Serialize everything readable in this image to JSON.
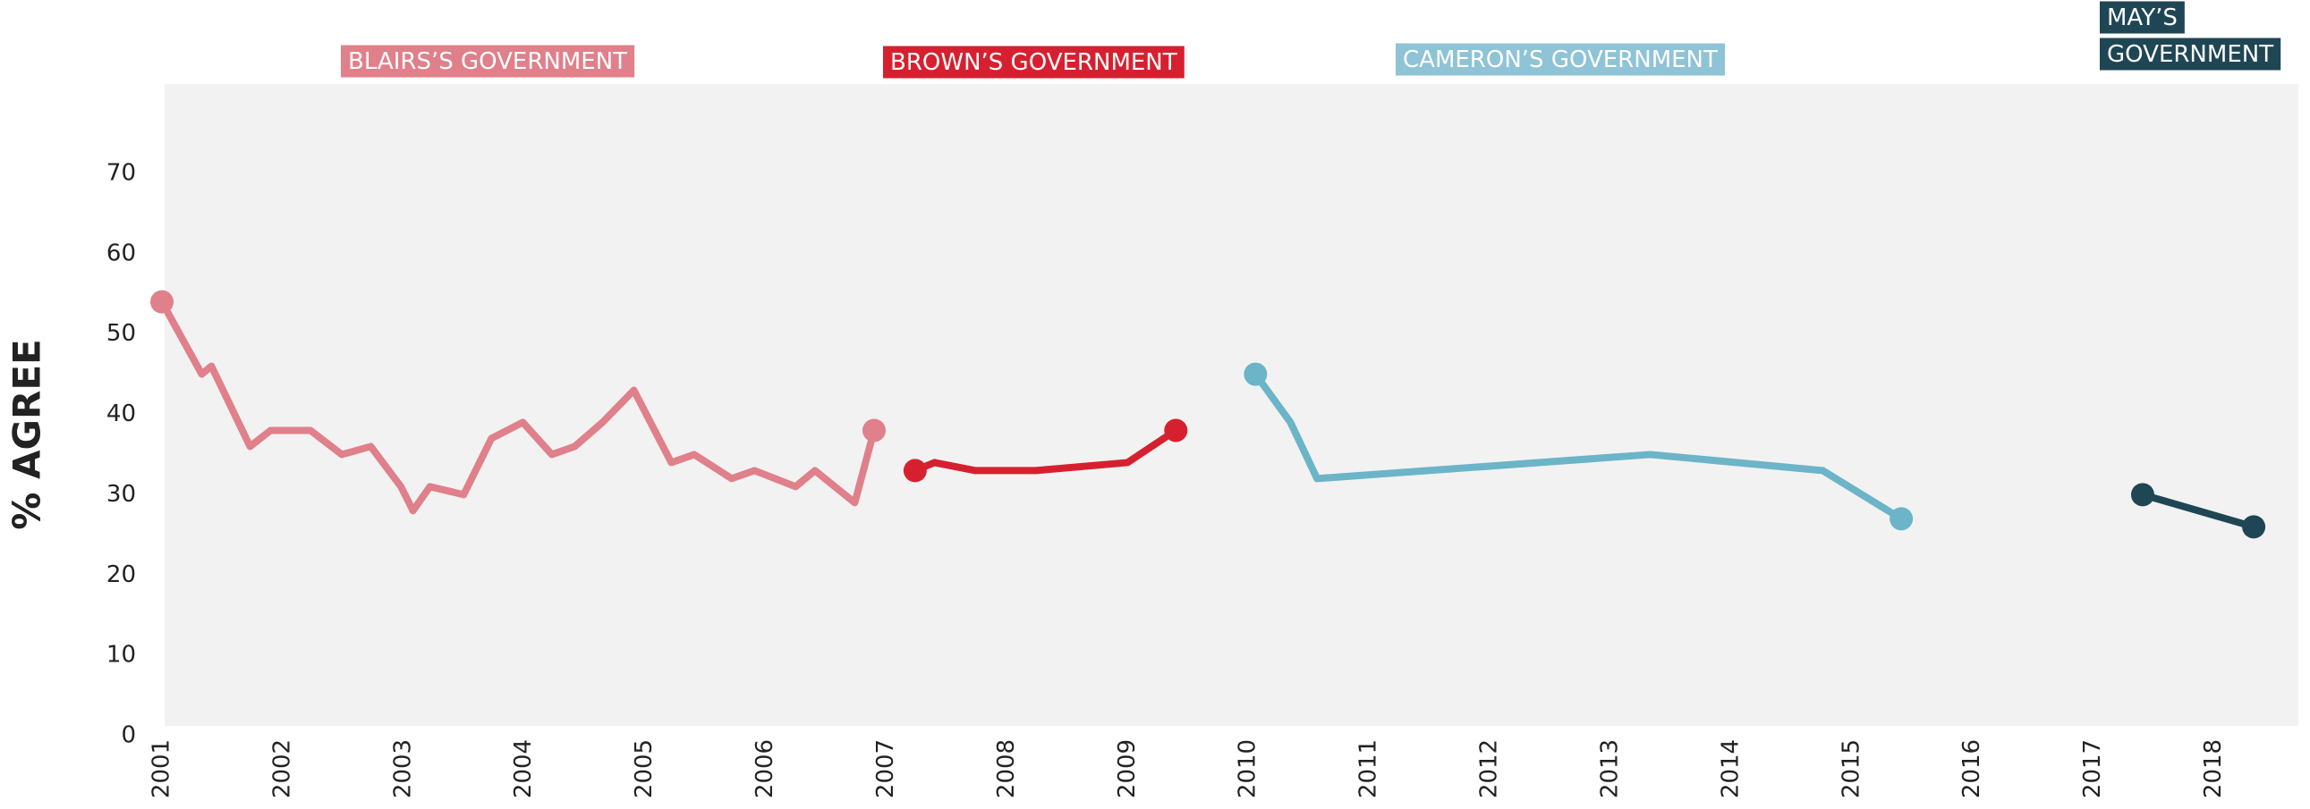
{
  "chart_data": {
    "type": "line",
    "y_label": "% AGREE",
    "xlim": [
      2001,
      2018.7
    ],
    "xticks": [
      2001,
      2002,
      2003,
      2004,
      2005,
      2006,
      2007,
      2008,
      2009,
      2010,
      2011,
      2012,
      2013,
      2014,
      2015,
      2016,
      2017,
      2018
    ],
    "ylim": [
      0,
      80
    ],
    "yticks": [
      0,
      10,
      20,
      30,
      40,
      50,
      60,
      70
    ],
    "series": [
      {
        "name": "BLAIRS’S GOVERNMENT",
        "color": "#e0808a",
        "x": [
          2001.0,
          2001.33,
          2001.41,
          2001.73,
          2001.9,
          2002.23,
          2002.49,
          2002.73,
          2002.98,
          2003.08,
          2003.22,
          2003.5,
          2003.73,
          2003.99,
          2004.23,
          2004.42,
          2004.65,
          2004.91,
          2005.22,
          2005.41,
          2005.72,
          2005.91,
          2006.25,
          2006.41,
          2006.74,
          2006.9
        ],
        "values": [
          54,
          45,
          46,
          36,
          38,
          38,
          35,
          36,
          31,
          28,
          31,
          30,
          37,
          39,
          35,
          36,
          39,
          43,
          34,
          35,
          32,
          33,
          31,
          33,
          29,
          38
        ]
      },
      {
        "name": "BROWN’S GOVERNMENT",
        "color": "#d7202f",
        "x": [
          2007.24,
          2007.4,
          2007.74,
          2008.24,
          2009.0,
          2009.4
        ],
        "values": [
          33,
          34,
          33,
          33,
          34,
          38
        ]
      },
      {
        "name": "CAMERON’S GOVERNMENT",
        "color": "#6cb4c8",
        "x": [
          2010.06,
          2010.35,
          2010.57,
          2013.33,
          2014.76,
          2015.41
        ],
        "values": [
          45,
          39,
          32,
          35,
          33,
          27
        ]
      },
      {
        "name": "MAY’S GOVERNMENT",
        "color": "#1f4654",
        "x": [
          2017.41,
          2018.33
        ],
        "values": [
          30,
          26
        ]
      }
    ]
  }
}
